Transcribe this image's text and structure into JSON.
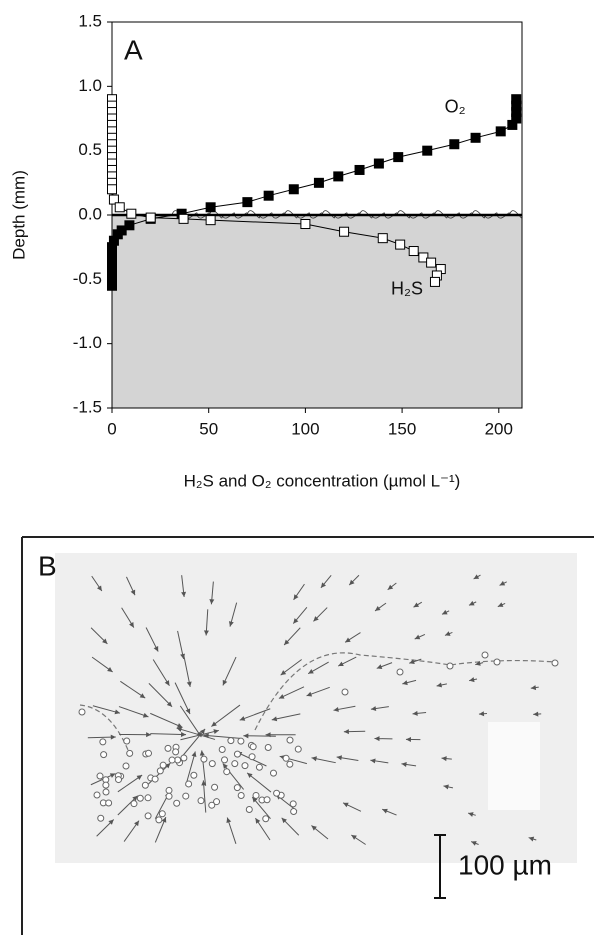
{
  "chart_data": {
    "type": "line",
    "panel_label": "A",
    "x_label": "H₂S and O₂ concentration (µmol L⁻¹)",
    "y_label": "Depth (mm)",
    "xlim": [
      0,
      212
    ],
    "xticks": [
      0,
      50,
      100,
      150,
      200
    ],
    "ylim": [
      -1.5,
      1.5
    ],
    "yticks": [
      1.5,
      {
        "value": 1,
        "label": "1.0"
      },
      0.5,
      {
        "value": 0,
        "label": "0.0"
      },
      -0.5,
      {
        "value": -1,
        "label": "-1.0"
      },
      -1.5
    ],
    "shade_below": 0,
    "shade_color": "#d4d4d4",
    "series": [
      {
        "name": "O₂",
        "color": "#000000",
        "marker_fill": "#000000",
        "x": [
          0,
          0,
          0,
          0,
          0,
          0,
          0,
          1,
          3,
          5,
          9,
          20,
          36,
          51,
          70,
          81,
          94,
          107,
          117,
          128,
          138,
          148,
          163,
          177,
          188,
          201,
          207,
          209,
          209,
          209,
          209
        ],
        "values": [
          -0.55,
          -0.5,
          -0.45,
          -0.4,
          -0.35,
          -0.3,
          -0.25,
          -0.2,
          -0.15,
          -0.12,
          -0.08,
          -0.03,
          0.01,
          0.06,
          0.1,
          0.15,
          0.2,
          0.25,
          0.3,
          0.35,
          0.4,
          0.45,
          0.5,
          0.55,
          0.6,
          0.65,
          0.7,
          0.75,
          0.8,
          0.85,
          0.9
        ]
      },
      {
        "name": "H₂S",
        "color": "#000000",
        "marker_fill": "#ffffff",
        "x": [
          0,
          0,
          0,
          0,
          0,
          0,
          0,
          0,
          0,
          0,
          0,
          0,
          0,
          0,
          0,
          1,
          4,
          10,
          20,
          37,
          51,
          100,
          120,
          140,
          149,
          156,
          161,
          165,
          170,
          168,
          167
        ],
        "values": [
          0.9,
          0.85,
          0.8,
          0.75,
          0.7,
          0.65,
          0.6,
          0.55,
          0.5,
          0.45,
          0.4,
          0.35,
          0.3,
          0.25,
          0.2,
          0.12,
          0.06,
          0.01,
          -0.02,
          -0.03,
          -0.04,
          -0.07,
          -0.13,
          -0.18,
          -0.23,
          -0.28,
          -0.33,
          -0.37,
          -0.42,
          -0.47,
          -0.52
        ]
      }
    ]
  },
  "panel_b": {
    "label": "B",
    "scale_bar": "100 µm"
  }
}
